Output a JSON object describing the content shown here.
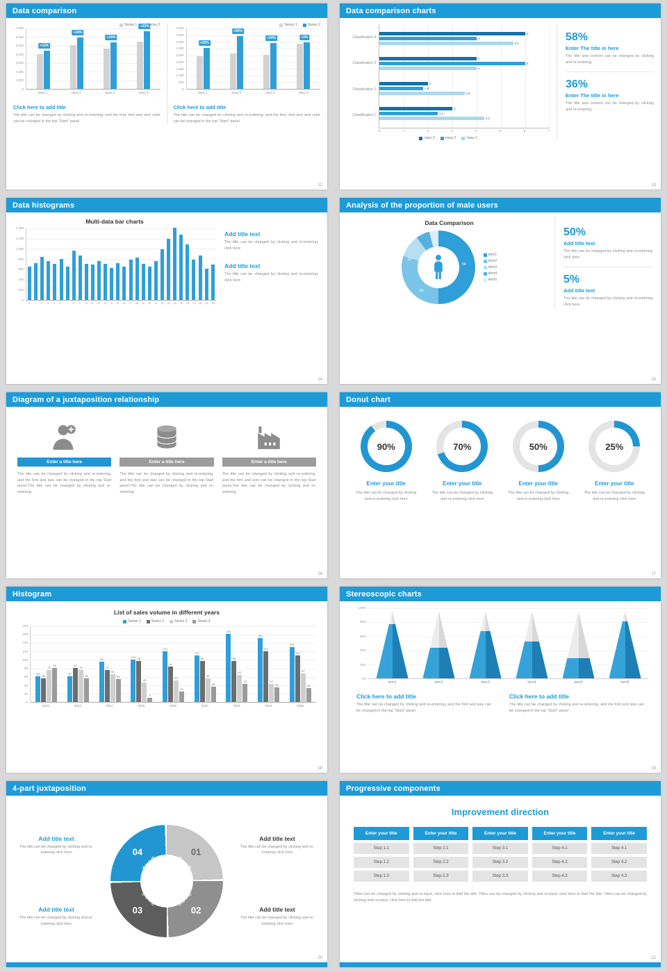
{
  "colors": {
    "accent": "#1e9bd7",
    "accent_mid": "#2e9fd9",
    "accent_dark": "#1470a8",
    "accent_light": "#a9d8ef",
    "bar_gray": "#d2d2d2",
    "text_gray": "#8a8a8a"
  },
  "slides": {
    "s12": {
      "title": "Data comparison",
      "page": "12",
      "panels": [
        {
          "caption": "Click here to add title",
          "body": "The title can be changed by clicking and re-entering, and the font, font size and color can be changed in the top \"Start\" panel"
        },
        {
          "caption": "Click here to add title",
          "body": "The title can be changed by clicking and re-entering, and the font, font size and color can be changed in the top \"Start\" panel"
        }
      ]
    },
    "s13": {
      "title": "Data comparison charts",
      "page": "13",
      "stats": [
        {
          "pct": "58%",
          "heading": "Enter The title in here",
          "body": "The title and content can be changed by clicking and re-entering."
        },
        {
          "pct": "36%",
          "heading": "Enter The title in here",
          "body": "The title and content can be changed by clicking and re-entering."
        }
      ]
    },
    "s14": {
      "title": "Data histograms",
      "page": "14",
      "chart_title": "Multi-data bar charts",
      "blocks": [
        {
          "heading": "Add title text",
          "body": "The title can be changed by clicking and re-entering click here"
        },
        {
          "heading": "Add title text",
          "body": "The title can be changed by clicking and re-entering click here"
        }
      ]
    },
    "s15": {
      "title": "Analysis of the proportion of male users",
      "page": "15",
      "chart_title": "Data Comparison",
      "stats": [
        {
          "pct": "50%",
          "heading": "Add title text",
          "body": "The title can be changed by clicking and re-entering click here"
        },
        {
          "pct": "5%",
          "heading": "Add title text",
          "body": "The title can be changed by clicking and re-entering click here"
        }
      ]
    },
    "s16": {
      "title": "Diagram of a juxtaposition relationship",
      "page": "16",
      "cols": [
        {
          "icon": "nurse-icon",
          "bar": "Enter a title here",
          "body": "The title can be changed by clicking and re-entering, and the font and size can be changed in the top Start panel.The title can be changed by clicking and re-entering."
        },
        {
          "icon": "database-icon",
          "bar": "Enter a title here",
          "body": "The title can be changed by clicking and re-entering, and the font and size can be changed in the top Start panel.The title can be changed by clicking and re-entering."
        },
        {
          "icon": "factory-icon",
          "bar": "Enter a title here",
          "body": "The title can be changed by clicking and re-entering, and the font and size can be changed in the top Start panel.The title can be changed by clicking and re-entering."
        }
      ]
    },
    "s17": {
      "title": "Donut chart",
      "page": "17",
      "donuts": [
        {
          "heading": "Enter your title",
          "body": "The title can be changed by clicking and re-entering click here"
        },
        {
          "heading": "Enter your title",
          "body": "The title can be changed by clicking and re-entering click here"
        },
        {
          "heading": "Enter your title",
          "body": "The title can be changed by clicking and re-entering click here"
        },
        {
          "heading": "Enter your title",
          "body": "The title can be changed by clicking and re-entering click here"
        }
      ]
    },
    "s18": {
      "title": "Histogram",
      "page": "18",
      "chart_title": "List of sales volume in different years"
    },
    "s19": {
      "title": "Stereoscopic charts",
      "page": "19",
      "blocks": [
        {
          "heading": "Click here to add title",
          "body": "The title can be changed by clicking and re-entering, and the font and size can be changed in the top \"Start\" panel"
        },
        {
          "heading": "Click here to add title",
          "body": "The title can be changed by clicking and re-entering, and the font and size can be changed in the top \"Start\" panel"
        }
      ]
    },
    "s20": {
      "title": "4-part juxtaposition",
      "page": "20",
      "blocks": [
        {
          "heading": "Add title text",
          "body": "The title can be changed by clicking and re-entering click here"
        },
        {
          "heading": "Add title text",
          "body": "The title can be changed by clicking and re-entering click here"
        },
        {
          "heading": "Add title text",
          "body": "The title can be changed by clicking and re-entering click here"
        },
        {
          "heading": "Add title text",
          "body": "The title can be changed by clicking and re-entering click here"
        }
      ],
      "ring": {
        "segments": [
          {
            "num": "01",
            "label": "添加标题",
            "color": "#c6c6c6",
            "num_color": "#6a6a6a"
          },
          {
            "num": "02",
            "label": "添加标题",
            "color": "#8f8f8f",
            "num_color": "#ffffff"
          },
          {
            "num": "03",
            "label": "添加标题",
            "color": "#5d5d5d",
            "num_color": "#ffffff"
          },
          {
            "num": "04",
            "label": "添加标题",
            "color": "#2196d3",
            "num_color": "#ffffff"
          }
        ]
      }
    },
    "s21": {
      "title": "Progressive components",
      "page": "21",
      "heading": "Improvement direction",
      "columns": [
        {
          "header": "Enter your title",
          "steps": [
            "Step 1.1",
            "Step 1.2",
            "Step 1.3"
          ]
        },
        {
          "header": "Enter your title",
          "steps": [
            "Step 2.1",
            "Step 2.2",
            "Step 2.3"
          ]
        },
        {
          "header": "Enter your title",
          "steps": [
            "Step 3.1",
            "Step 3.2",
            "Step 3.3"
          ]
        },
        {
          "header": "Enter your title",
          "steps": [
            "Step 4.1",
            "Step 4.2",
            "Step 4.3"
          ]
        },
        {
          "header": "Enter your title",
          "steps": [
            "Step 4.1",
            "Step 4.2",
            "Step 4.3"
          ]
        }
      ],
      "footnote": "Titles can be changed by clicking and re-input, click here to Add the title. Titles can be changed by clicking and re-input, click here to Add the title. Titles can be changed by clicking and re-input, click here to Add the title."
    }
  },
  "chart_data": [
    {
      "id": "c12a",
      "type": "bar",
      "title": "",
      "categories": [
        "class 1",
        "class 2",
        "class 3",
        "class 4"
      ],
      "series": [
        {
          "name": "Series 1",
          "color": "#d2d2d2",
          "values": [
            4000,
            5000,
            4600,
            5400
          ]
        },
        {
          "name": "Series 2",
          "color": "#2e9fd9",
          "values": [
            4400,
            5900,
            5300,
            6600
          ]
        }
      ],
      "group_labels": [
        "+10%",
        "+18%",
        "+16%",
        "+22%"
      ],
      "yticks": [
        "7,000",
        "6,000",
        "5,000",
        "4,000",
        "3,000",
        "2,000",
        "1,000",
        "0"
      ],
      "ymax": 7000,
      "grid": true,
      "legend_position": "top-right"
    },
    {
      "id": "c12b",
      "type": "bar",
      "title": "",
      "categories": [
        "class 1",
        "class 2",
        "class 3",
        "class 4"
      ],
      "series": [
        {
          "name": "Series 1",
          "color": "#d2d2d2",
          "values": [
            2400,
            2600,
            2500,
            3300
          ]
        },
        {
          "name": "Series 2",
          "color": "#2e9fd9",
          "values": [
            3000,
            3900,
            3350,
            3450
          ]
        }
      ],
      "group_labels": [
        "+25%",
        "+50%",
        "+34%",
        "+5%"
      ],
      "yticks": [
        "4,500",
        "4,000",
        "3,500",
        "3,000",
        "2,500",
        "2,000",
        "1,500",
        "1,000",
        "500",
        "0"
      ],
      "ymax": 4500,
      "grid": true,
      "legend_position": "top-right"
    },
    {
      "id": "c13",
      "type": "bar-horizontal",
      "title": "",
      "categories": [
        "Classification 4",
        "Classification 3",
        "Classification 2",
        "Classification 1"
      ],
      "series": [
        {
          "name": "class 3",
          "color": "#1470a8",
          "values": [
            6,
            4,
            2,
            3
          ]
        },
        {
          "name": "class 2",
          "color": "#2e9fd9",
          "values": [
            4,
            6,
            1.8,
            2.4
          ]
        },
        {
          "name": "class 1",
          "color": "#a9d8ef",
          "values": [
            5.5,
            4,
            3.5,
            4.3
          ]
        }
      ],
      "xticks": [
        "0",
        "1",
        "2",
        "3",
        "4",
        "5",
        "6",
        "7"
      ],
      "xmax": 7,
      "grid": true,
      "legend_position": "bottom"
    },
    {
      "id": "c14",
      "type": "bar",
      "title": "Multi-data bar charts",
      "categories": [
        "1",
        "2",
        "3",
        "4",
        "5",
        "6",
        "7",
        "8",
        "9",
        "10",
        "11",
        "12",
        "13",
        "14",
        "15",
        "16",
        "17",
        "18",
        "19",
        "20",
        "21",
        "22",
        "23",
        "24",
        "25",
        "26",
        "27",
        "28",
        "29",
        "30"
      ],
      "series": [
        {
          "name": "values",
          "color": "#2e9fd9",
          "values": [
            650,
            720,
            830,
            760,
            700,
            790,
            640,
            960,
            860,
            700,
            690,
            760,
            700,
            620,
            710,
            650,
            780,
            820,
            700,
            640,
            760,
            980,
            1180,
            1400,
            1260,
            1080,
            780,
            860,
            600,
            680
          ]
        }
      ],
      "yticks": [
        "1,400",
        "1,200",
        "1,000",
        "800",
        "600",
        "400",
        "200",
        "0"
      ],
      "ymax": 1400,
      "grid": true
    },
    {
      "id": "c15",
      "type": "pie",
      "donut": true,
      "title": "Data Comparison",
      "segments": [
        {
          "name": "item1",
          "value": 50,
          "color": "#2e9fd9"
        },
        {
          "name": "item2",
          "value": 30,
          "color": "#7ac4e7"
        },
        {
          "name": "item3",
          "value": 10,
          "color": "#b7dff2"
        },
        {
          "name": "item4",
          "value": 6,
          "color": "#57b1e0"
        },
        {
          "name": "item5",
          "value": 4,
          "color": "#d9eefa"
        }
      ],
      "data_labels": [
        {
          "text": "50",
          "x": "85%",
          "y": "46%"
        },
        {
          "text": "30",
          "x": "27%",
          "y": "82%"
        },
        {
          "text": "10",
          "x": "11%",
          "y": "40%"
        }
      ],
      "legend_position": "right"
    },
    {
      "id": "c17",
      "type": "pie",
      "donut": true,
      "title": "Donut chart",
      "gauges": [
        {
          "label": "90%",
          "value": 90
        },
        {
          "label": "70%",
          "value": 70
        },
        {
          "label": "50%",
          "value": 50
        },
        {
          "label": "25%",
          "value": 25
        }
      ]
    },
    {
      "id": "c18",
      "type": "bar",
      "title": "List of sales volume in different years",
      "categories": [
        "2010",
        "2012",
        "2014",
        "2016",
        "2018",
        "2020",
        "2022",
        "2024",
        "2026"
      ],
      "series": [
        {
          "name": "Series 1",
          "color": "#2e9fd9",
          "values": [
            60,
            60,
            95,
            100,
            120,
            110,
            160,
            150,
            130
          ]
        },
        {
          "name": "Series 2",
          "color": "#6d6d6d",
          "values": [
            55,
            80,
            75,
            96,
            84,
            96,
            96,
            120,
            110
          ]
        },
        {
          "name": "Series 3",
          "color": "#cfcfcf",
          "values": [
            75,
            76,
            65,
            45,
            50,
            55,
            63,
            42,
            67
          ]
        },
        {
          "name": "Series 4",
          "color": "#9b9b9b",
          "values": [
            80,
            55,
            54,
            9,
            24,
            36,
            42,
            35,
            32
          ]
        }
      ],
      "yticks": [
        "180",
        "160",
        "140",
        "120",
        "100",
        "80",
        "60",
        "40",
        "20",
        "0"
      ],
      "ymax": 180,
      "value_labels": true,
      "grid": true,
      "legend_position": "top"
    },
    {
      "id": "c19",
      "type": "area",
      "subtype": "pyramid",
      "title": "",
      "categories": [
        "item1",
        "item2",
        "item3",
        "item4",
        "item5",
        "item6"
      ],
      "values": [
        80,
        45,
        70,
        55,
        30,
        85
      ],
      "yticks": [
        "100%",
        "80%",
        "60%",
        "40%",
        "20%",
        "0%"
      ],
      "ymax": 100,
      "grid": true
    }
  ]
}
